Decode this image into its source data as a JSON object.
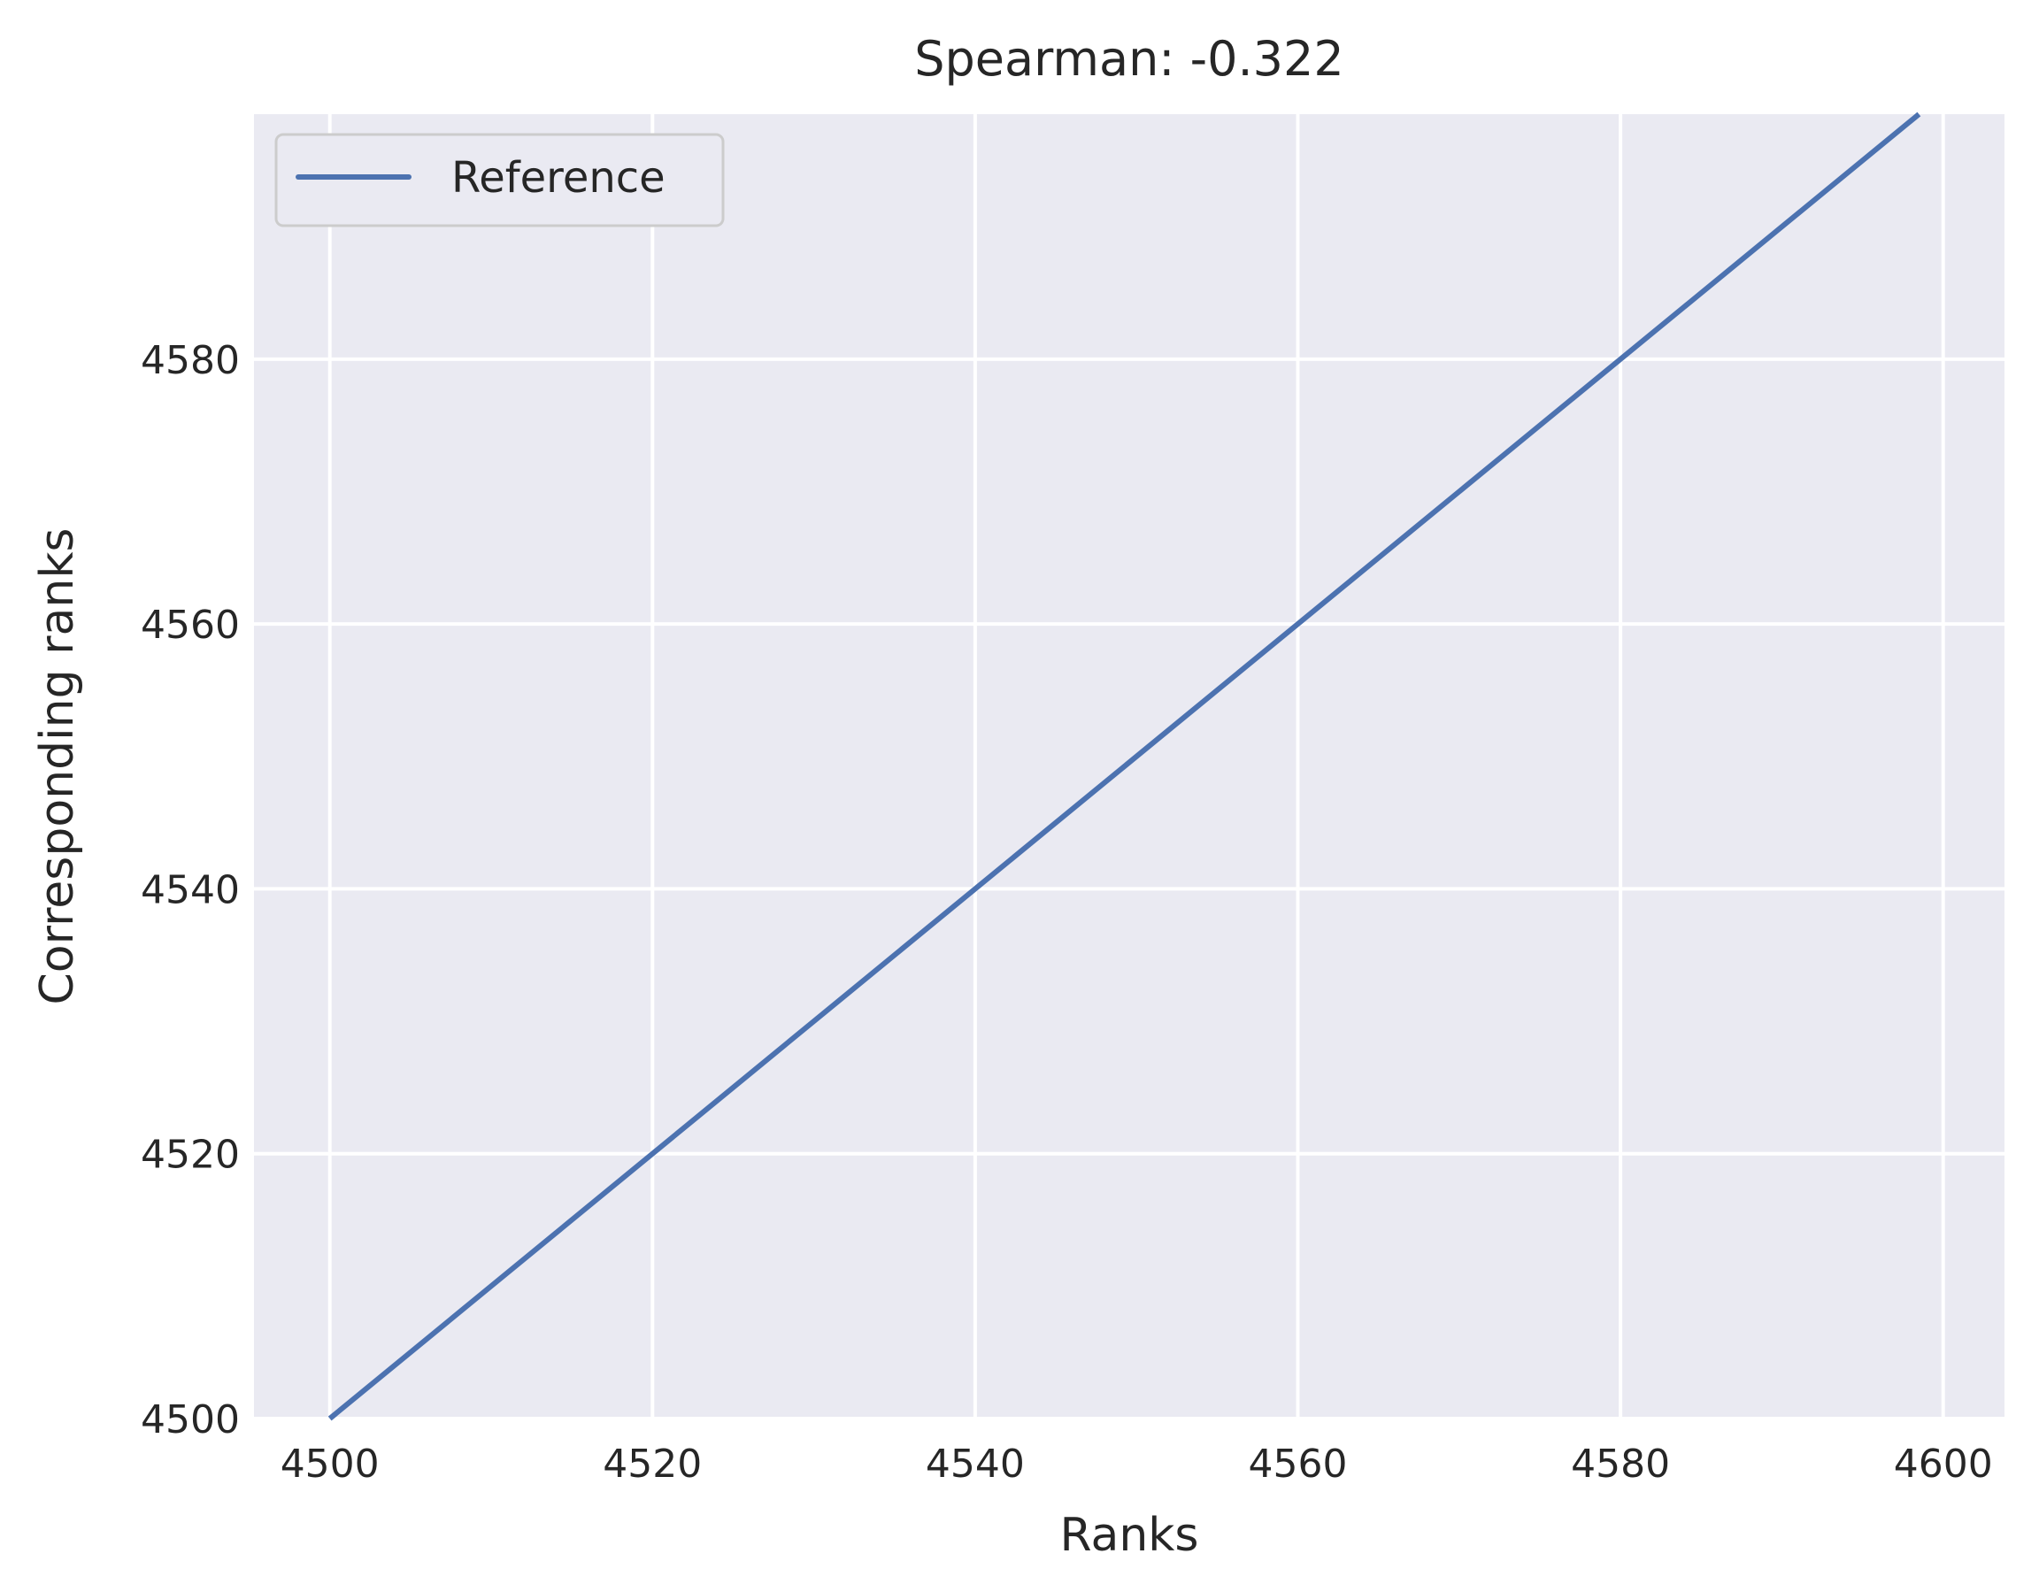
{
  "chart_data": {
    "type": "line",
    "title": "Spearman: -0.322",
    "xlabel": "Ranks",
    "ylabel": "Corresponding ranks",
    "xlim": [
      4495.3,
      4603.8
    ],
    "ylim": [
      4500,
      4598.5
    ],
    "xticks": [
      4500,
      4520,
      4540,
      4560,
      4580,
      4600
    ],
    "yticks": [
      4500,
      4520,
      4540,
      4560,
      4580
    ],
    "grid": true,
    "legend_position": "top-left",
    "series": [
      {
        "name": "Reference",
        "color": "#4c72b0",
        "x": [
          4500,
          4598.5
        ],
        "y": [
          4500,
          4598.5
        ]
      }
    ],
    "background": "#eaeaf2",
    "grid_color": "#ffffff"
  }
}
